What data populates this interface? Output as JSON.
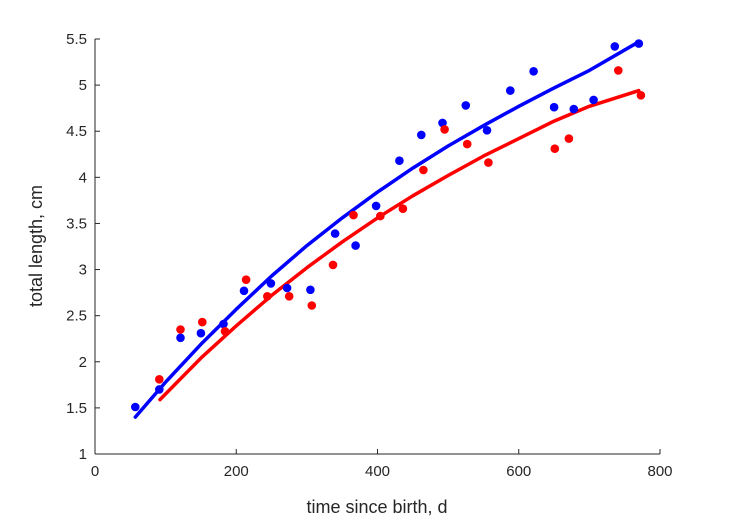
{
  "chart_data": {
    "type": "scatter",
    "title": "",
    "xlabel": "time since birth, d",
    "ylabel": "total length, cm",
    "xlim": [
      0,
      800
    ],
    "ylim": [
      1,
      5.5
    ],
    "x_ticks": [
      0,
      200,
      400,
      600,
      800
    ],
    "y_ticks": [
      1,
      1.5,
      2,
      2.5,
      3,
      3.5,
      4,
      4.5,
      5,
      5.5
    ],
    "x_tick_labels": [
      "0",
      "200",
      "400",
      "600",
      "800"
    ],
    "y_tick_labels": [
      "1",
      "1.5",
      "2",
      "2.5",
      "3",
      "3.5",
      "4",
      "4.5",
      "5",
      "5.5"
    ],
    "grid": false,
    "legend": "none",
    "series": [
      {
        "color": "#0000ff",
        "points": [
          [
            57,
            1.51
          ],
          [
            91,
            1.7
          ],
          [
            121,
            2.26
          ],
          [
            150,
            2.31
          ],
          [
            182,
            2.41
          ],
          [
            211,
            2.77
          ],
          [
            249,
            2.85
          ],
          [
            272,
            2.8
          ],
          [
            305,
            2.78
          ],
          [
            340,
            3.39
          ],
          [
            369,
            3.26
          ],
          [
            398,
            3.69
          ],
          [
            431,
            4.18
          ],
          [
            462,
            4.46
          ],
          [
            492,
            4.59
          ],
          [
            525,
            4.78
          ],
          [
            555,
            4.51
          ],
          [
            588,
            4.94
          ],
          [
            621,
            5.15
          ],
          [
            650,
            4.76
          ],
          [
            678,
            4.74
          ],
          [
            706,
            4.84
          ],
          [
            736,
            5.42
          ],
          [
            770,
            5.45
          ]
        ],
        "fit": [
          [
            57,
            1.4
          ],
          [
            100,
            1.78
          ],
          [
            150,
            2.19
          ],
          [
            200,
            2.57
          ],
          [
            250,
            2.93
          ],
          [
            300,
            3.26
          ],
          [
            350,
            3.56
          ],
          [
            400,
            3.84
          ],
          [
            450,
            4.1
          ],
          [
            500,
            4.34
          ],
          [
            550,
            4.56
          ],
          [
            600,
            4.77
          ],
          [
            650,
            4.97
          ],
          [
            700,
            5.16
          ],
          [
            770,
            5.47
          ]
        ]
      },
      {
        "color": "#ff0000",
        "points": [
          [
            91,
            1.81
          ],
          [
            121,
            2.35
          ],
          [
            152,
            2.43
          ],
          [
            184,
            2.33
          ],
          [
            214,
            2.89
          ],
          [
            244,
            2.71
          ],
          [
            275,
            2.71
          ],
          [
            307,
            2.61
          ],
          [
            337,
            3.05
          ],
          [
            366,
            3.59
          ],
          [
            404,
            3.58
          ],
          [
            436,
            3.66
          ],
          [
            465,
            4.08
          ],
          [
            495,
            4.52
          ],
          [
            527,
            4.36
          ],
          [
            557,
            4.16
          ],
          [
            651,
            4.31
          ],
          [
            671,
            4.42
          ],
          [
            741,
            5.16
          ],
          [
            773,
            4.89
          ]
        ],
        "fit": [
          [
            92,
            1.59
          ],
          [
            150,
            2.04
          ],
          [
            200,
            2.39
          ],
          [
            250,
            2.72
          ],
          [
            300,
            3.02
          ],
          [
            350,
            3.3
          ],
          [
            400,
            3.56
          ],
          [
            450,
            3.8
          ],
          [
            500,
            4.02
          ],
          [
            550,
            4.23
          ],
          [
            600,
            4.42
          ],
          [
            650,
            4.61
          ],
          [
            700,
            4.77
          ],
          [
            770,
            4.94
          ]
        ]
      }
    ]
  }
}
